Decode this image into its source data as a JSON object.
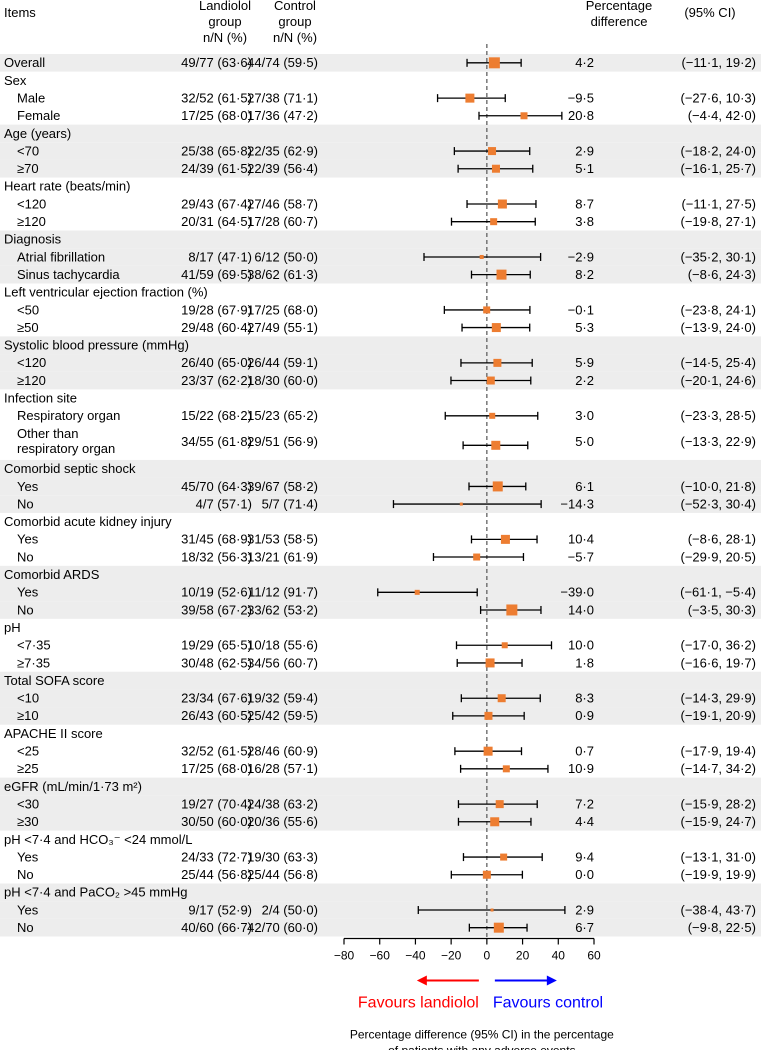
{
  "chart_data": {
    "type": "forest",
    "header": {
      "items": "Items",
      "landiolol": [
        "Landiolol",
        "group",
        "n/N (%)"
      ],
      "control": [
        "Control",
        "group",
        "n/N (%)"
      ],
      "pct": [
        "Percentage",
        "difference"
      ],
      "ci": "(95% CI)"
    },
    "xlim": [
      -80,
      60
    ],
    "ticks": [
      -80,
      -60,
      -40,
      -20,
      0,
      20,
      40,
      60
    ],
    "reference_line": 0,
    "favours_left": "Favours landiolol",
    "favours_right": "Favours control",
    "xlabel": [
      "Percentage difference (95% CI) in the percentage",
      "of patients with any adverse events"
    ],
    "colors": {
      "marker": "#ed7d31",
      "shade": "#ededed",
      "left_arrow": "#ff0000",
      "right_arrow": "#0000ff",
      "ref_line": "#555555"
    },
    "rows": [
      {
        "label": "Overall",
        "indent": false,
        "shade": true,
        "landiolol": "49/77 (63·6)",
        "control": "44/74 (59·5)",
        "diff": "4·2",
        "ci": "(−11·1, 19·2)",
        "est": 4.2,
        "lo": -11.1,
        "hi": 19.2,
        "size": 11
      },
      {
        "label": "Sex",
        "indent": false,
        "shade": false,
        "header": true
      },
      {
        "label": "Male",
        "indent": true,
        "shade": false,
        "landiolol": "32/52 (61·5)",
        "control": "27/38 (71·1)",
        "diff": "−9·5",
        "ci": "(−27·6, 10·3)",
        "est": -9.5,
        "lo": -27.6,
        "hi": 10.3,
        "size": 9
      },
      {
        "label": "Female",
        "indent": true,
        "shade": false,
        "landiolol": "17/25 (68·0)",
        "control": "17/36 (47·2)",
        "diff": "20·8",
        "ci": "(−4·4, 42·0)",
        "est": 20.8,
        "lo": -4.4,
        "hi": 42.0,
        "size": 7
      },
      {
        "label": "Age (years)",
        "indent": false,
        "shade": true,
        "header": true
      },
      {
        "label": "<70",
        "indent": true,
        "shade": true,
        "landiolol": "25/38 (65·8)",
        "control": "22/35 (62·9)",
        "diff": "2·9",
        "ci": "(−18·2, 24·0)",
        "est": 2.9,
        "lo": -18.2,
        "hi": 24.0,
        "size": 8
      },
      {
        "label": "≥70",
        "indent": true,
        "shade": true,
        "landiolol": "24/39 (61·5)",
        "control": "22/39 (56·4)",
        "diff": "5·1",
        "ci": "(−16·1, 25·7)",
        "est": 5.1,
        "lo": -16.1,
        "hi": 25.7,
        "size": 8
      },
      {
        "label": "Heart rate (beats/min)",
        "indent": false,
        "shade": false,
        "header": true
      },
      {
        "label": "<120",
        "indent": true,
        "shade": false,
        "landiolol": "29/43 (67·4)",
        "control": "27/46 (58·7)",
        "diff": "8·7",
        "ci": "(−11·1, 27·5)",
        "est": 8.7,
        "lo": -11.1,
        "hi": 27.5,
        "size": 9
      },
      {
        "label": "≥120",
        "indent": true,
        "shade": false,
        "landiolol": "20/31 (64·5)",
        "control": "17/28 (60·7)",
        "diff": "3·8",
        "ci": "(−19·8, 27·1)",
        "est": 3.8,
        "lo": -19.8,
        "hi": 27.1,
        "size": 7
      },
      {
        "label": "Diagnosis",
        "indent": false,
        "shade": true,
        "header": true
      },
      {
        "label": "Atrial fibrillation",
        "indent": true,
        "shade": true,
        "landiolol": "8/17 (47·1)",
        "control": "6/12 (50·0)",
        "diff": "−2·9",
        "ci": "(−35·2, 30·1)",
        "est": -2.9,
        "lo": -35.2,
        "hi": 30.1,
        "size": 4
      },
      {
        "label": "Sinus tachycardia",
        "indent": true,
        "shade": true,
        "landiolol": "41/59 (69·5)",
        "control": "38/62 (61·3)",
        "diff": "8·2",
        "ci": "(−8·6, 24·3)",
        "est": 8.2,
        "lo": -8.6,
        "hi": 24.3,
        "size": 10
      },
      {
        "label": "Left ventricular ejection fraction (%)",
        "indent": false,
        "shade": false,
        "header": true
      },
      {
        "label": "<50",
        "indent": true,
        "shade": false,
        "landiolol": "19/28 (67·9)",
        "control": "17/25 (68·0)",
        "diff": "−0·1",
        "ci": "(−23·8, 24·1)",
        "est": -0.1,
        "lo": -23.8,
        "hi": 24.1,
        "size": 7
      },
      {
        "label": "≥50",
        "indent": true,
        "shade": false,
        "landiolol": "29/48 (60·4)",
        "control": "27/49 (55·1)",
        "diff": "5·3",
        "ci": "(−13·9, 24·0)",
        "est": 5.3,
        "lo": -13.9,
        "hi": 24.0,
        "size": 9
      },
      {
        "label": "Systolic blood pressure (mmHg)",
        "indent": false,
        "shade": true,
        "header": true
      },
      {
        "label": "<120",
        "indent": true,
        "shade": true,
        "landiolol": "26/40 (65·0)",
        "control": "26/44 (59·1)",
        "diff": "5·9",
        "ci": "(−14·5, 25·4)",
        "est": 5.9,
        "lo": -14.5,
        "hi": 25.4,
        "size": 8
      },
      {
        "label": "≥120",
        "indent": true,
        "shade": true,
        "landiolol": "23/37 (62·2)",
        "control": "18/30 (60·0)",
        "diff": "2·2",
        "ci": "(−20·1, 24·6)",
        "est": 2.2,
        "lo": -20.1,
        "hi": 24.6,
        "size": 8
      },
      {
        "label": "Infection site",
        "indent": false,
        "shade": false,
        "header": true
      },
      {
        "label": "Respiratory organ",
        "indent": true,
        "shade": false,
        "landiolol": "15/22 (68·2)",
        "control": "15/23 (65·2)",
        "diff": "3·0",
        "ci": "(−23·3, 28·5)",
        "est": 3.0,
        "lo": -23.3,
        "hi": 28.5,
        "size": 6
      },
      {
        "label": [
          "Other than",
          "respiratory organ"
        ],
        "indent": true,
        "shade": false,
        "tall": true,
        "landiolol": "34/55 (61·8)",
        "control": "29/51 (56·9)",
        "diff": "5·0",
        "ci": "(−13·3, 22·9)",
        "est": 5.0,
        "lo": -13.3,
        "hi": 22.9,
        "size": 9
      },
      {
        "label": "Comorbid septic shock",
        "indent": false,
        "shade": true,
        "header": true
      },
      {
        "label": "Yes",
        "indent": true,
        "shade": true,
        "landiolol": "45/70 (64·3)",
        "control": "39/67 (58·2)",
        "diff": "6·1",
        "ci": "(−10·0, 21·8)",
        "est": 6.1,
        "lo": -10.0,
        "hi": 21.8,
        "size": 10
      },
      {
        "label": "No",
        "indent": true,
        "shade": true,
        "landiolol": "4/7 (57·1)",
        "control": "5/7 (71·4)",
        "diff": "−14·3",
        "ci": "(−52·3, 30·4)",
        "est": -14.3,
        "lo": -52.3,
        "hi": 30.4,
        "size": 3
      },
      {
        "label": "Comorbid acute kidney injury",
        "indent": false,
        "shade": false,
        "header": true
      },
      {
        "label": "Yes",
        "indent": true,
        "shade": false,
        "landiolol": "31/45 (68·9)",
        "control": "31/53 (58·5)",
        "diff": "10·4",
        "ci": "(−8·6, 28·1)",
        "est": 10.4,
        "lo": -8.6,
        "hi": 28.1,
        "size": 9
      },
      {
        "label": "No",
        "indent": true,
        "shade": false,
        "landiolol": "18/32 (56·3)",
        "control": "13/21 (61·9)",
        "diff": "−5·7",
        "ci": "(−29·9, 20·5)",
        "est": -5.7,
        "lo": -29.9,
        "hi": 20.5,
        "size": 7
      },
      {
        "label": "Comorbid ARDS",
        "indent": false,
        "shade": true,
        "header": true
      },
      {
        "label": "Yes",
        "indent": true,
        "shade": true,
        "landiolol": "10/19 (52·6)",
        "control": "11/12 (91·7)",
        "diff": "−39·0",
        "ci": "(−61·1, −5·4)",
        "est": -39.0,
        "lo": -61.1,
        "hi": -5.4,
        "size": 5
      },
      {
        "label": "No",
        "indent": true,
        "shade": true,
        "landiolol": "39/58 (67·2)",
        "control": "33/62 (53·2)",
        "diff": "14·0",
        "ci": "(−3·5, 30·3)",
        "est": 14.0,
        "lo": -3.5,
        "hi": 30.3,
        "size": 11
      },
      {
        "label": "pH",
        "indent": false,
        "shade": false,
        "header": true
      },
      {
        "label": "<7·35",
        "indent": true,
        "shade": false,
        "landiolol": "19/29 (65·5)",
        "control": "10/18 (55·6)",
        "diff": "10·0",
        "ci": "(−17·0, 36·2)",
        "est": 10.0,
        "lo": -17.0,
        "hi": 36.2,
        "size": 6
      },
      {
        "label": "≥7·35",
        "indent": true,
        "shade": false,
        "landiolol": "30/48 (62·5)",
        "control": "34/56 (60·7)",
        "diff": "1·8",
        "ci": "(−16·6, 19·7)",
        "est": 1.8,
        "lo": -16.6,
        "hi": 19.7,
        "size": 9
      },
      {
        "label": "Total SOFA score",
        "indent": false,
        "shade": true,
        "header": true
      },
      {
        "label": "<10",
        "indent": true,
        "shade": true,
        "landiolol": "23/34 (67·6)",
        "control": "19/32 (59·4)",
        "diff": "8·3",
        "ci": "(−14·3, 29·9)",
        "est": 8.3,
        "lo": -14.3,
        "hi": 29.9,
        "size": 8
      },
      {
        "label": "≥10",
        "indent": true,
        "shade": true,
        "landiolol": "26/43 (60·5)",
        "control": "25/42 (59·5)",
        "diff": "0·9",
        "ci": "(−19·1, 20·9)",
        "est": 0.9,
        "lo": -19.1,
        "hi": 20.9,
        "size": 8
      },
      {
        "label": "APACHE II score",
        "indent": false,
        "shade": false,
        "header": true
      },
      {
        "label": "<25",
        "indent": true,
        "shade": false,
        "landiolol": "32/52 (61·5)",
        "control": "28/46 (60·9)",
        "diff": "0·7",
        "ci": "(−17·9, 19·4)",
        "est": 0.7,
        "lo": -17.9,
        "hi": 19.4,
        "size": 9
      },
      {
        "label": "≥25",
        "indent": true,
        "shade": false,
        "landiolol": "17/25 (68·0)",
        "control": "16/28 (57·1)",
        "diff": "10·9",
        "ci": "(−14·7, 34·2)",
        "est": 10.9,
        "lo": -14.7,
        "hi": 34.2,
        "size": 7
      },
      {
        "label": "eGFR (mL/min/1·73 m²)",
        "indent": false,
        "shade": true,
        "header": true
      },
      {
        "label": "<30",
        "indent": true,
        "shade": true,
        "landiolol": "19/27 (70·4)",
        "control": "24/38 (63·2)",
        "diff": "7·2",
        "ci": "(−15·9, 28·2)",
        "est": 7.2,
        "lo": -15.9,
        "hi": 28.2,
        "size": 8
      },
      {
        "label": "≥30",
        "indent": true,
        "shade": true,
        "landiolol": "30/50 (60·0)",
        "control": "20/36 (55·6)",
        "diff": "4·4",
        "ci": "(−15·9, 24·7)",
        "est": 4.4,
        "lo": -15.9,
        "hi": 24.7,
        "size": 9
      },
      {
        "label": "pH <7·4 and HCO₃⁻ <24 mmol/L",
        "indent": false,
        "shade": false,
        "header": true
      },
      {
        "label": "Yes",
        "indent": true,
        "shade": false,
        "landiolol": "24/33 (72·7)",
        "control": "19/30 (63·3)",
        "diff": "9·4",
        "ci": "(−13·1, 31·0)",
        "est": 9.4,
        "lo": -13.1,
        "hi": 31.0,
        "size": 7
      },
      {
        "label": "No",
        "indent": true,
        "shade": false,
        "landiolol": "25/44 (56·8)",
        "control": "25/44 (56·8)",
        "diff": "0·0",
        "ci": "(−19·9, 19·9)",
        "est": 0.0,
        "lo": -19.9,
        "hi": 19.9,
        "size": 8
      },
      {
        "label": "pH <7·4 and PaCO₂ >45 mmHg",
        "indent": false,
        "shade": true,
        "header": true
      },
      {
        "label": "Yes",
        "indent": true,
        "shade": true,
        "landiolol": "9/17 (52·9)",
        "control": "2/4 (50·0)",
        "diff": "2·9",
        "ci": "(−38·4, 43·7)",
        "est": 2.9,
        "lo": -38.4,
        "hi": 43.7,
        "size": 3
      },
      {
        "label": "No",
        "indent": true,
        "shade": true,
        "landiolol": "40/60 (66·7)",
        "control": "42/70 (60·0)",
        "diff": "6·7",
        "ci": "(−9·8, 22·5)",
        "est": 6.7,
        "lo": -9.8,
        "hi": 22.5,
        "size": 10
      }
    ]
  }
}
